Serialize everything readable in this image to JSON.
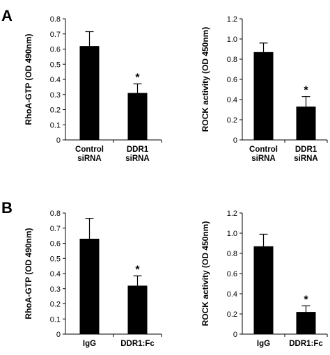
{
  "panels": [
    {
      "letter": "A"
    },
    {
      "letter": "B"
    }
  ],
  "chart_data": [
    {
      "type": "bar",
      "panel": "A",
      "title": "",
      "ylabel": "RhoA-GTP (OD 490nm)",
      "categories": [
        [
          "Control",
          "siRNA"
        ],
        [
          "DDR1",
          "siRNA"
        ]
      ],
      "values": [
        0.62,
        0.31
      ],
      "errors": [
        0.095,
        0.06
      ],
      "significance": [
        "",
        "*"
      ],
      "ylim": [
        0,
        0.8
      ],
      "yticks": [
        0,
        0.1,
        0.2,
        0.3,
        0.4,
        0.5,
        0.6,
        0.7,
        0.8
      ],
      "ytick_labels": [
        "0",
        "0.1",
        "0.2",
        "0.3",
        "0.4",
        "0.5",
        "0.6",
        "0.7",
        "0.8"
      ],
      "grid": false,
      "color": "#000000"
    },
    {
      "type": "bar",
      "panel": "A",
      "title": "",
      "ylabel": "ROCK activity (OD 450nm)",
      "categories": [
        [
          "Control",
          "siRNA"
        ],
        [
          "DDR1",
          "siRNA"
        ]
      ],
      "values": [
        0.87,
        0.33
      ],
      "errors": [
        0.09,
        0.1
      ],
      "significance": [
        "",
        "*"
      ],
      "ylim": [
        0,
        1.2
      ],
      "yticks": [
        0,
        0.2,
        0.4,
        0.6,
        0.8,
        1.0,
        1.2
      ],
      "ytick_labels": [
        "0",
        "0.2",
        "0.4",
        "0.6",
        "0.8",
        "1.0",
        "1.2"
      ],
      "grid": false,
      "color": "#000000"
    },
    {
      "type": "bar",
      "panel": "B",
      "title": "",
      "ylabel": "RhoA-GTP (OD 490nm)",
      "categories": [
        [
          "IgG"
        ],
        [
          "DDR1:Fc"
        ]
      ],
      "values": [
        0.63,
        0.32
      ],
      "errors": [
        0.135,
        0.065
      ],
      "significance": [
        "",
        "*"
      ],
      "ylim": [
        0,
        0.8
      ],
      "yticks": [
        0,
        0.1,
        0.2,
        0.3,
        0.4,
        0.5,
        0.6,
        0.7,
        0.8
      ],
      "ytick_labels": [
        "0",
        "0.1",
        "0.2",
        "0.3",
        "0.4",
        "0.5",
        "0.6",
        "0.7",
        "0.8"
      ],
      "grid": false,
      "color": "#000000"
    },
    {
      "type": "bar",
      "panel": "B",
      "title": "",
      "ylabel": "ROCK activity (OD 450nm)",
      "categories": [
        [
          "IgG"
        ],
        [
          "DDR1:Fc"
        ]
      ],
      "values": [
        0.87,
        0.22
      ],
      "errors": [
        0.12,
        0.06
      ],
      "significance": [
        "",
        "*"
      ],
      "ylim": [
        0,
        1.2
      ],
      "yticks": [
        0,
        0.2,
        0.4,
        0.6,
        0.8,
        1.0,
        1.2
      ],
      "ytick_labels": [
        "0",
        "0.2",
        "0.4",
        "0.6",
        "0.8",
        "1.0",
        "1.2"
      ],
      "grid": false,
      "color": "#000000"
    }
  ]
}
